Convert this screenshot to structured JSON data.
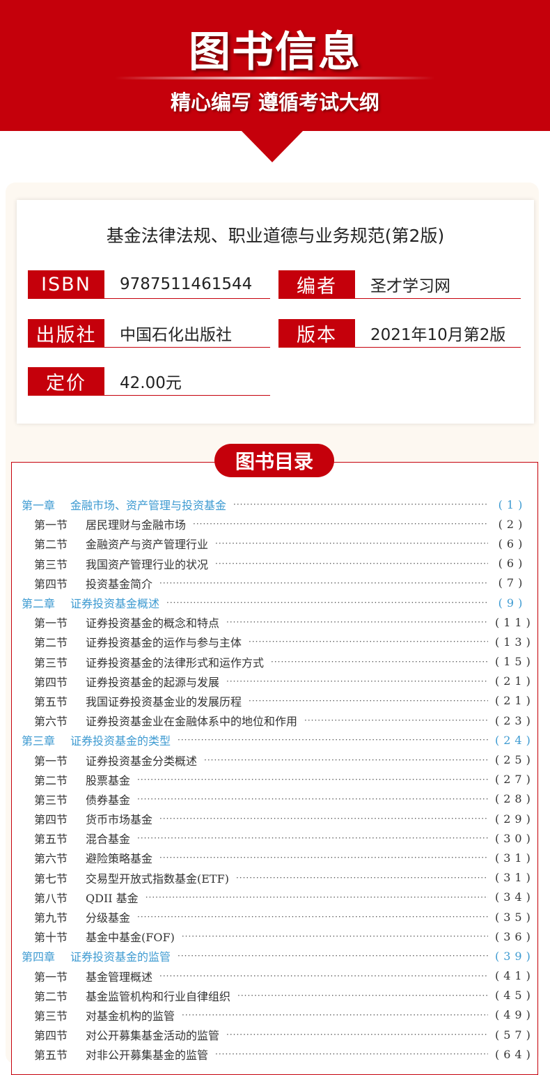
{
  "header": {
    "title": "图书信息",
    "subtitle": "精心编写 遵循考试大纲"
  },
  "book": {
    "name": "基金法律法规、职业道德与业务规范(第2版)",
    "fields": [
      {
        "label": "ISBN",
        "value": "9787511461544"
      },
      {
        "label": "编者",
        "value": "圣才学习网"
      },
      {
        "label": "出版社",
        "value": "中国石化出版社"
      },
      {
        "label": "版本",
        "value": "2021年10月第2版"
      },
      {
        "label": "定价",
        "value": "42.00元"
      }
    ]
  },
  "toc": {
    "title": "图书目录",
    "rows": [
      {
        "type": "ch",
        "num": "第一章",
        "title": "金融市场、资产管理与投资基金",
        "page": "(1)"
      },
      {
        "type": "sec",
        "num": "第一节",
        "title": "居民理财与金融市场",
        "page": "(2)"
      },
      {
        "type": "sec",
        "num": "第二节",
        "title": "金融资产与资产管理行业",
        "page": "(6)"
      },
      {
        "type": "sec",
        "num": "第三节",
        "title": "我国资产管理行业的状况",
        "page": "(6)"
      },
      {
        "type": "sec",
        "num": "第四节",
        "title": "投资基金简介",
        "page": "(7)"
      },
      {
        "type": "ch",
        "num": "第二章",
        "title": "证券投资基金概述",
        "page": "(9)"
      },
      {
        "type": "sec",
        "num": "第一节",
        "title": "证券投资基金的概念和特点",
        "page": "(11)"
      },
      {
        "type": "sec",
        "num": "第二节",
        "title": "证券投资基金的运作与参与主体",
        "page": "(13)"
      },
      {
        "type": "sec",
        "num": "第三节",
        "title": "证券投资基金的法律形式和运作方式",
        "page": "(15)"
      },
      {
        "type": "sec",
        "num": "第四节",
        "title": "证券投资基金的起源与发展",
        "page": "(21)"
      },
      {
        "type": "sec",
        "num": "第五节",
        "title": "我国证券投资基金业的发展历程",
        "page": "(21)"
      },
      {
        "type": "sec",
        "num": "第六节",
        "title": "证券投资基金业在金融体系中的地位和作用",
        "page": "(23)"
      },
      {
        "type": "ch",
        "num": "第三章",
        "title": "证券投资基金的类型",
        "page": "(24)"
      },
      {
        "type": "sec",
        "num": "第一节",
        "title": "证券投资基金分类概述",
        "page": "(25)"
      },
      {
        "type": "sec",
        "num": "第二节",
        "title": "股票基金",
        "page": "(27)"
      },
      {
        "type": "sec",
        "num": "第三节",
        "title": "债券基金",
        "page": "(28)"
      },
      {
        "type": "sec",
        "num": "第四节",
        "title": "货币市场基金",
        "page": "(29)"
      },
      {
        "type": "sec",
        "num": "第五节",
        "title": "混合基金",
        "page": "(30)"
      },
      {
        "type": "sec",
        "num": "第六节",
        "title": "避险策略基金",
        "page": "(31)"
      },
      {
        "type": "sec",
        "num": "第七节",
        "title": "交易型开放式指数基金(ETF)",
        "page": "(31)"
      },
      {
        "type": "sec",
        "num": "第八节",
        "title": "QDII 基金",
        "page": "(34)"
      },
      {
        "type": "sec",
        "num": "第九节",
        "title": "分级基金",
        "page": "(35)"
      },
      {
        "type": "sec",
        "num": "第十节",
        "title": "基金中基金(FOF)",
        "page": "(36)"
      },
      {
        "type": "ch",
        "num": "第四章",
        "title": "证券投资基金的监管",
        "page": "(39)"
      },
      {
        "type": "sec",
        "num": "第一节",
        "title": "基金管理概述",
        "page": "(41)"
      },
      {
        "type": "sec",
        "num": "第二节",
        "title": "基金监管机构和行业自律组织",
        "page": "(45)"
      },
      {
        "type": "sec",
        "num": "第三节",
        "title": "对基金机构的监管",
        "page": "(49)"
      },
      {
        "type": "sec",
        "num": "第四节",
        "title": "对公开募集基金活动的监管",
        "page": "(57)"
      },
      {
        "type": "sec",
        "num": "第五节",
        "title": "对非公开募集基金的监管",
        "page": "(64)"
      }
    ]
  },
  "colors": {
    "brand_red": "#c5000b",
    "chapter_blue": "#3d9ad1"
  }
}
